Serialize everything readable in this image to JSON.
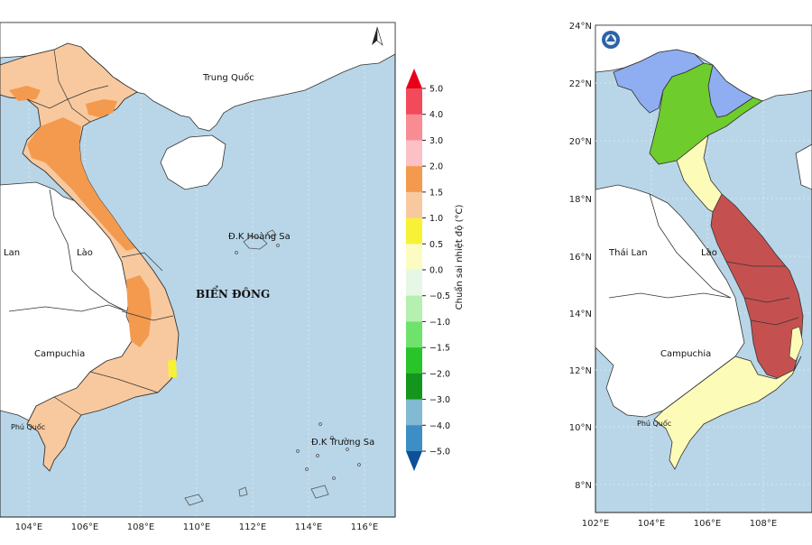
{
  "left_map": {
    "x_ticks": [
      "104°E",
      "106°E",
      "108°E",
      "110°E",
      "112°E",
      "114°E",
      "116°E"
    ],
    "labels": {
      "china": "Trung Quốc",
      "hoang_sa": "Đ.K Hoàng Sa",
      "truong_sa": "Đ.K Trường Sa",
      "sea": "BIỂN ĐÔNG",
      "laos": "Lào",
      "thailand": "Lan",
      "cambodia": "Campuchia",
      "phu_quoc": "Phú Quốc"
    }
  },
  "legend": {
    "title": "Chuẩn sai nhiệt độ (°C)",
    "ticks": [
      "5.0",
      "4.0",
      "3.0",
      "2.0",
      "1.5",
      "1.0",
      "0.5",
      "0.0",
      "−0.5",
      "−1.0",
      "−1.5",
      "−2.0",
      "−3.0",
      "−4.0",
      "−5.0"
    ],
    "colors": [
      "#e8001a",
      "#f24a5a",
      "#f98b93",
      "#fbc1c5",
      "#f39a4e",
      "#f8c99f",
      "#f7f236",
      "#fbfbc2",
      "#e6f7e6",
      "#b5f0b0",
      "#6fe26d",
      "#28c42a",
      "#14951b",
      "#82b9d3",
      "#3d8ec4",
      "#0e4f99"
    ]
  },
  "right_map": {
    "x_ticks": [
      "102°E",
      "104°E",
      "106°E",
      "108°E"
    ],
    "y_ticks": [
      "24°N",
      "22°N",
      "20°N",
      "18°N",
      "16°N",
      "14°N",
      "12°N",
      "10°N",
      "8°N"
    ],
    "labels": {
      "laos": "Lào",
      "thailand": "Thái Lan",
      "cambodia": "Campuchia",
      "phu_quoc": "Phú Quốc"
    }
  },
  "colors": {
    "sea": "#b9d6e8",
    "land_other": "#ffffff",
    "border": "#222222",
    "cat_blue": "#8faef2",
    "cat_green": "#6ecc2d",
    "cat_yellow": "#fdfbb8",
    "cat_red": "#c45150"
  }
}
